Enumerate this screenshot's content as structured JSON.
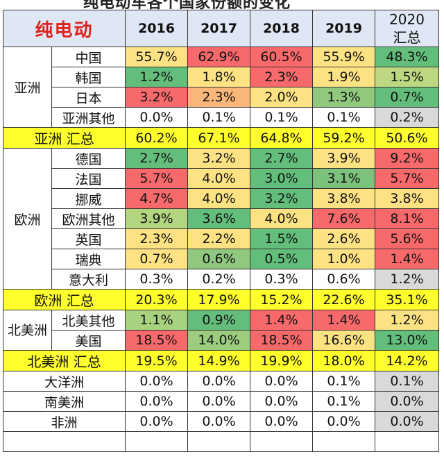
{
  "title_partial": "纯电动车各个国家份额的变化",
  "header": {
    "label": "纯电动",
    "years": [
      "2016",
      "2017",
      "2018",
      "2019"
    ],
    "last_col": [
      "2020",
      "汇总"
    ]
  },
  "colors": {
    "title_red": "#e0201a",
    "header_bg": "#dfe7f4",
    "subtotal_yellow": "#ffff2c",
    "neutral_gray": "#d9d9d9",
    "high_red": "#f8696b",
    "low_green": "#63be7b"
  },
  "asia": {
    "region": "亚洲",
    "rows": [
      {
        "name": "中国",
        "values": [
          "55.7%",
          "62.9%",
          "60.5%",
          "55.9%",
          "48.3%"
        ],
        "colors": [
          "#fde284",
          "#f8696b",
          "#f8696b",
          "#fde284",
          "#63be7b"
        ]
      },
      {
        "name": "韩国",
        "values": [
          "1.2%",
          "1.8%",
          "2.3%",
          "1.9%",
          "1.5%"
        ],
        "colors": [
          "#63be7b",
          "#fde284",
          "#f8696b",
          "#fde284",
          "#bcd881"
        ]
      },
      {
        "name": "日本",
        "values": [
          "3.2%",
          "2.3%",
          "2.0%",
          "1.3%",
          "0.7%"
        ],
        "colors": [
          "#f8696b",
          "#fbb77a",
          "#fde284",
          "#90c87e",
          "#63be7b"
        ]
      },
      {
        "name": "亚洲其他",
        "values": [
          "0.0%",
          "0.1%",
          "0.1%",
          "0.1%",
          "0.2%"
        ],
        "colors": [
          "#ffffff",
          "#ffffff",
          "#ffffff",
          "#ffffff",
          "#d9d9d9"
        ]
      }
    ],
    "subtotal": {
      "label": "亚洲 汇总",
      "values": [
        "60.2%",
        "67.1%",
        "64.8%",
        "59.2%",
        "50.6%"
      ]
    }
  },
  "europe": {
    "region": "欧洲",
    "rows": [
      {
        "name": "德国",
        "values": [
          "2.7%",
          "3.2%",
          "2.7%",
          "3.9%",
          "9.2%"
        ],
        "colors": [
          "#63be7b",
          "#fde284",
          "#63be7b",
          "#fde284",
          "#f8696b"
        ]
      },
      {
        "name": "法国",
        "values": [
          "5.7%",
          "4.0%",
          "3.0%",
          "3.1%",
          "5.7%"
        ],
        "colors": [
          "#f8696b",
          "#fde284",
          "#63be7b",
          "#7cc27d",
          "#f8696b"
        ]
      },
      {
        "name": "挪威",
        "values": [
          "4.7%",
          "4.0%",
          "3.2%",
          "3.8%",
          "3.8%"
        ],
        "colors": [
          "#f8696b",
          "#fde284",
          "#63be7b",
          "#fde284",
          "#fde284"
        ]
      },
      {
        "name": "欧洲其他",
        "values": [
          "3.9%",
          "3.6%",
          "4.0%",
          "7.6%",
          "8.1%"
        ],
        "colors": [
          "#b4d580",
          "#63be7b",
          "#fde284",
          "#f8696b",
          "#f8696b"
        ]
      },
      {
        "name": "英国",
        "values": [
          "2.3%",
          "2.2%",
          "1.5%",
          "2.6%",
          "5.6%"
        ],
        "colors": [
          "#fde284",
          "#fde284",
          "#63be7b",
          "#fde284",
          "#f8696b"
        ]
      },
      {
        "name": "瑞典",
        "values": [
          "0.7%",
          "0.6%",
          "0.5%",
          "1.0%",
          "1.4%"
        ],
        "colors": [
          "#fde284",
          "#8fc87e",
          "#63be7b",
          "#fde284",
          "#f8696b"
        ]
      },
      {
        "name": "意大利",
        "values": [
          "0.3%",
          "0.2%",
          "0.3%",
          "0.6%",
          "1.2%"
        ],
        "colors": [
          "#ffffff",
          "#ffffff",
          "#ffffff",
          "#ffffff",
          "#d9d9d9"
        ]
      }
    ],
    "subtotal": {
      "label": "欧洲 汇总",
      "values": [
        "20.3%",
        "17.9%",
        "15.2%",
        "22.6%",
        "35.1%"
      ]
    }
  },
  "north_america": {
    "region": "北美洲",
    "rows": [
      {
        "name": "北美其他",
        "values": [
          "1.1%",
          "0.9%",
          "1.4%",
          "1.4%",
          "1.2%"
        ],
        "colors": [
          "#a9d27f",
          "#63be7b",
          "#f8696b",
          "#f8696b",
          "#fde284"
        ]
      },
      {
        "name": "美国",
        "values": [
          "18.5%",
          "14.0%",
          "18.5%",
          "16.6%",
          "13.0%"
        ],
        "colors": [
          "#f8696b",
          "#9ccd7f",
          "#f8696b",
          "#fde284",
          "#63be7b"
        ]
      }
    ],
    "subtotal": {
      "label": "北美洲 汇总",
      "values": [
        "19.5%",
        "14.9%",
        "19.9%",
        "18.0%",
        "14.2%"
      ]
    }
  },
  "other_regions": [
    {
      "name": "大洋洲",
      "values": [
        "0.0%",
        "0.0%",
        "0.0%",
        "0.1%",
        "0.1%"
      ],
      "colors": [
        "#ffffff",
        "#ffffff",
        "#ffffff",
        "#ffffff",
        "#d9d9d9"
      ]
    },
    {
      "name": "南美洲",
      "values": [
        "0.0%",
        "0.0%",
        "0.0%",
        "0.1%",
        "0.0%"
      ],
      "colors": [
        "#ffffff",
        "#ffffff",
        "#ffffff",
        "#ffffff",
        "#d9d9d9"
      ]
    },
    {
      "name": "非洲",
      "values": [
        "0.0%",
        "0.0%",
        "0.0%",
        "0.0%",
        "0.0%"
      ],
      "colors": [
        "#ffffff",
        "#ffffff",
        "#ffffff",
        "#ffffff",
        "#d9d9d9"
      ]
    }
  ]
}
